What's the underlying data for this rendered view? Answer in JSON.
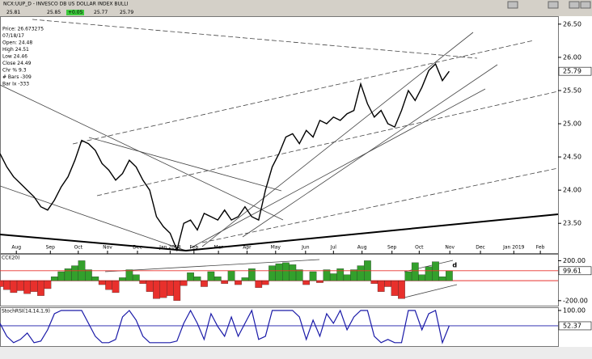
{
  "header": {
    "title": "NCX:UUP_D - INVESCO DB US DOLLAR INDEX BULLI",
    "quote": [
      "25.81",
      "25.85",
      "+0.05",
      "25.77",
      "25.79"
    ],
    "info": [
      "Price: 26.673275",
      "07/18/17",
      "Open: 24.48",
      "High 24.51",
      "Low 24.46",
      "Close 24.49",
      "Chr % 9.3",
      "# Bars -309",
      "Bar Ix -333"
    ]
  },
  "chart_data": [
    {
      "type": "line",
      "xlim": [
        0,
        82
      ],
      "xticks": [
        {
          "value": 2.4,
          "label": "Aug"
        },
        {
          "value": 7.4,
          "label": "Sep"
        },
        {
          "value": 11.5,
          "label": "Oct"
        },
        {
          "value": 15.8,
          "label": "Nov"
        },
        {
          "value": 20.2,
          "label": "Dec"
        },
        {
          "value": 25,
          "label": "Jan 2018"
        },
        {
          "value": 28.5,
          "label": "Feb"
        },
        {
          "value": 32.1,
          "label": "Mar"
        },
        {
          "value": 36.3,
          "label": "Apr"
        },
        {
          "value": 40.5,
          "label": "May"
        },
        {
          "value": 44.9,
          "label": "Jun"
        },
        {
          "value": 49,
          "label": "Jul"
        },
        {
          "value": 53.2,
          "label": "Aug"
        },
        {
          "value": 57.6,
          "label": "Sep"
        },
        {
          "value": 61.6,
          "label": "Oct"
        },
        {
          "value": 66.1,
          "label": "Nov"
        },
        {
          "value": 70.6,
          "label": "Dec"
        },
        {
          "value": 75.5,
          "label": "Jan 2019"
        },
        {
          "value": 79.4,
          "label": "Feb"
        }
      ],
      "ylim": [
        23.04,
        26.62
      ],
      "yticks": [
        {
          "value": 23.5,
          "label": "23.50"
        },
        {
          "value": 24,
          "label": "24.00"
        },
        {
          "value": 24.5,
          "label": "24.50"
        },
        {
          "value": 25,
          "label": "25.00"
        },
        {
          "value": 25.5,
          "label": "25.50"
        },
        {
          "value": 26,
          "label": "26.00"
        },
        {
          "value": 26.5,
          "label": "26.50"
        }
      ],
      "series": [
        {
          "color": "#000000",
          "values": [
            24.55,
            24.35,
            24.2,
            24.1,
            24.0,
            23.9,
            23.75,
            23.7,
            23.85,
            24.05,
            24.2,
            24.45,
            24.75,
            24.7,
            24.6,
            24.4,
            24.3,
            24.15,
            24.25,
            24.45,
            24.35,
            24.15,
            24.0,
            23.6,
            23.45,
            23.35,
            23.1,
            23.5,
            23.55,
            23.4,
            23.65,
            23.6,
            23.55,
            23.7,
            23.55,
            23.6,
            23.75,
            23.6,
            23.55,
            24.0,
            24.35,
            24.55,
            24.8,
            24.85,
            24.7,
            24.9,
            24.8,
            25.05,
            25.0,
            25.1,
            25.05,
            25.15,
            25.2,
            25.6,
            25.3,
            25.1,
            25.2,
            25.0,
            24.95,
            25.2,
            25.5,
            25.35,
            25.55,
            25.8,
            25.9,
            25.65,
            25.79
          ]
        }
      ]
    },
    {
      "type": "bar",
      "title": "CCI(20)",
      "xlim": [
        0,
        82
      ],
      "ylim": [
        -258,
        268
      ],
      "yticks": [
        {
          "value": 200,
          "label": "200.00"
        },
        {
          "value": -200,
          "label": "-200.00"
        }
      ],
      "up_color": "#33a02c",
      "down_color": "#e8302c",
      "zero_color": "#e8302c",
      "series": [
        {
          "values": [
            -60,
            -90,
            -120,
            -100,
            -130,
            -110,
            -150,
            -80,
            40,
            90,
            120,
            150,
            200,
            110,
            40,
            -40,
            -90,
            -120,
            30,
            110,
            60,
            -30,
            -110,
            -180,
            -170,
            -150,
            -200,
            -50,
            80,
            40,
            -60,
            90,
            40,
            -30,
            100,
            -40,
            30,
            120,
            -70,
            -40,
            150,
            170,
            180,
            160,
            110,
            -40,
            90,
            -20,
            110,
            70,
            120,
            60,
            110,
            150,
            200,
            -30,
            -110,
            -60,
            -150,
            -180,
            90,
            180,
            60,
            140,
            190,
            40,
            99.61
          ]
        }
      ],
      "annotation": "d"
    },
    {
      "type": "line",
      "title": "StochRSI(14,14,1,9)",
      "xlim": [
        0,
        82
      ],
      "ylim": [
        -13,
        110
      ],
      "yticks": [
        {
          "value": 100,
          "label": "100.00"
        }
      ],
      "series": [
        {
          "color": "#1a1aa8",
          "values": [
            60,
            20,
            0,
            10,
            30,
            0,
            5,
            40,
            90,
            100,
            100,
            100,
            100,
            60,
            20,
            0,
            0,
            10,
            80,
            100,
            70,
            20,
            0,
            0,
            0,
            0,
            5,
            60,
            100,
            60,
            10,
            90,
            50,
            20,
            80,
            20,
            60,
            100,
            10,
            20,
            100,
            100,
            100,
            100,
            80,
            10,
            70,
            20,
            90,
            60,
            100,
            40,
            80,
            100,
            100,
            20,
            0,
            10,
            0,
            0,
            100,
            100,
            40,
            90,
            100,
            0,
            52.37
          ]
        }
      ]
    }
  ]
}
